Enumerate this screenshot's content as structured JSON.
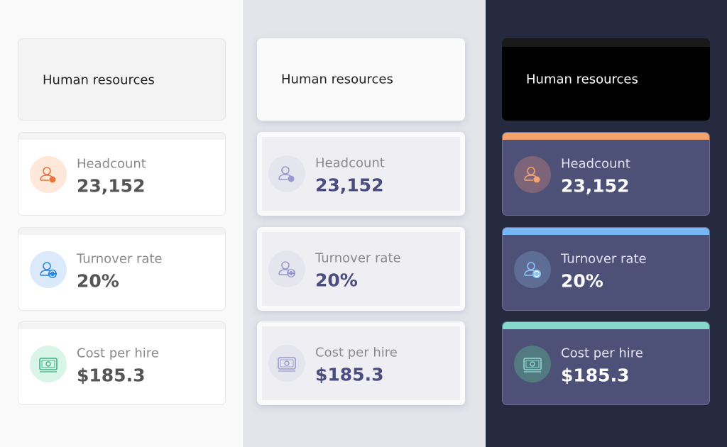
{
  "panels": [
    {
      "title": "Human resources",
      "metrics": [
        {
          "label": "Headcount",
          "value": "23,152"
        },
        {
          "label": "Turnover rate",
          "value": "20%"
        },
        {
          "label": "Cost per hire",
          "value": "$185.3"
        }
      ]
    },
    {
      "title": "Human resources",
      "metrics": [
        {
          "label": "Headcount",
          "value": "23,152"
        },
        {
          "label": "Turnover rate",
          "value": "20%"
        },
        {
          "label": "Cost per hire",
          "value": "$185.3"
        }
      ]
    },
    {
      "title": "Human resources",
      "metrics": [
        {
          "label": "Headcount",
          "value": "23,152"
        },
        {
          "label": "Turnover rate",
          "value": "20%"
        },
        {
          "label": "Cost per hire",
          "value": "$185.3"
        }
      ]
    }
  ]
}
